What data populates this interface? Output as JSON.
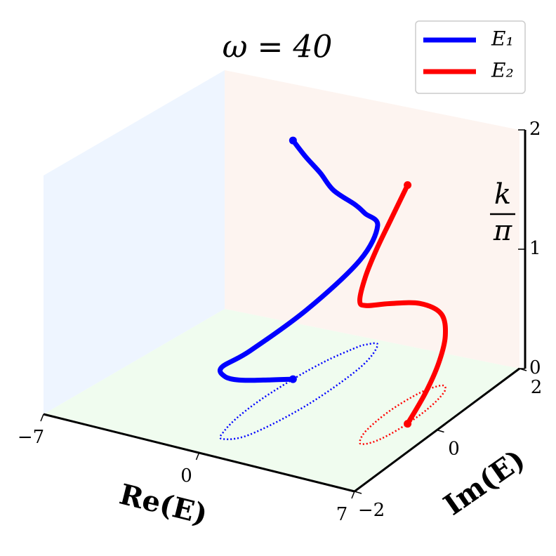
{
  "chart_data": {
    "type": "line3d",
    "title": "ω = 40",
    "xlabel": "Re(E)",
    "ylabel": "Im(E)",
    "zlabel": {
      "num": "k",
      "den": "π"
    },
    "xlim": [
      -7,
      7
    ],
    "ylim": [
      -2,
      2
    ],
    "zlim": [
      0,
      2
    ],
    "xticks": [
      {
        "value": -7,
        "label": "−7"
      },
      0,
      7
    ],
    "yticks": [
      {
        "value": -2,
        "label": "−2"
      },
      0,
      2
    ],
    "zticks": [
      0,
      1,
      2
    ],
    "legend": "upper right",
    "series": [
      {
        "name": "E₁",
        "color": "#0000ff",
        "x": [
          -0.62,
          -0.65,
          -0.53,
          -0.28,
          0.05,
          0.77,
          1.22,
          1.13,
          0.55,
          0.08,
          -0.1,
          -0.37,
          -0.48,
          -0.57,
          -0.62
        ],
        "y": [
          0.48,
          -0.19,
          -0.8,
          -1.26,
          -1.5,
          -1.22,
          -0.12,
          1.16,
          1.86,
          1.8,
          1.66,
          1.29,
          1.04,
          0.75,
          0.48
        ],
        "z": [
          0,
          0.15,
          0.3,
          0.45,
          0.6,
          0.7,
          0.8,
          0.9,
          1.0,
          1.1,
          1.2,
          1.4,
          1.6,
          1.8,
          2.0
        ]
      },
      {
        "name": "E₂",
        "color": "#ff0000",
        "x": [
          5.66,
          5.66,
          5.54,
          5.32,
          4.97,
          4.57,
          4.4,
          4.55,
          4.9,
          5.16,
          5.39,
          5.56,
          5.66
        ],
        "y": [
          -0.01,
          0.42,
          0.8,
          1.07,
          1.15,
          0.84,
          0.21,
          -0.43,
          -0.76,
          -0.76,
          -0.62,
          -0.35,
          -0.01
        ],
        "z": [
          0,
          0.15,
          0.3,
          0.45,
          0.6,
          0.75,
          0.9,
          1.05,
          1.19,
          1.4,
          1.6,
          1.8,
          2.0
        ]
      }
    ]
  }
}
